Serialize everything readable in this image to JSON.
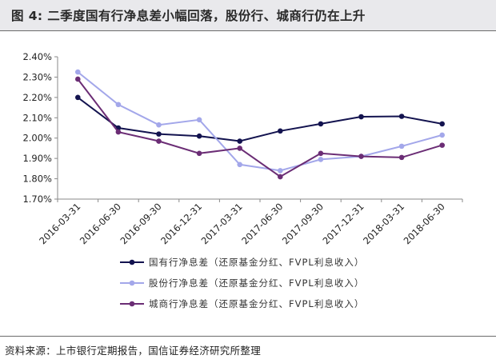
{
  "header": {
    "title": "图 4:  二季度国有行净息差小幅回落，股份行、城商行仍在上升"
  },
  "footer": {
    "source": "资料来源：上市银行定期报告，国信证券经济研究所整理"
  },
  "chart_data": {
    "type": "line",
    "x": [
      "2016-03-31",
      "2016-06-30",
      "2016-09-30",
      "2016-12-31",
      "2017-03-31",
      "2017-06-30",
      "2017-09-30",
      "2017-12-31",
      "2018-03-31",
      "2018-06-30"
    ],
    "ylim": [
      1.7,
      2.4
    ],
    "yticks": [
      "1.70%",
      "1.80%",
      "1.90%",
      "2.00%",
      "2.10%",
      "2.20%",
      "2.30%",
      "2.40%"
    ],
    "grid": false,
    "legend": "bottom",
    "series": [
      {
        "name": "国有行净息差（还原基金分红、FVPL利息收入）",
        "color": "#13134f",
        "values": [
          2.2,
          2.05,
          2.02,
          2.01,
          1.985,
          2.035,
          2.07,
          2.105,
          2.107,
          2.07
        ]
      },
      {
        "name": "股份行净息差（还原基金分红、FVPL利息收入）",
        "color": "#a3a7ea",
        "values": [
          2.325,
          2.165,
          2.065,
          2.09,
          1.87,
          1.84,
          1.895,
          1.91,
          1.96,
          2.015
        ]
      },
      {
        "name": "城商行净息差（还原基金分红、FVPL利息收入）",
        "color": "#6b2d75",
        "values": [
          2.29,
          2.03,
          1.985,
          1.925,
          1.95,
          1.81,
          1.925,
          1.91,
          1.905,
          1.965
        ]
      }
    ]
  }
}
